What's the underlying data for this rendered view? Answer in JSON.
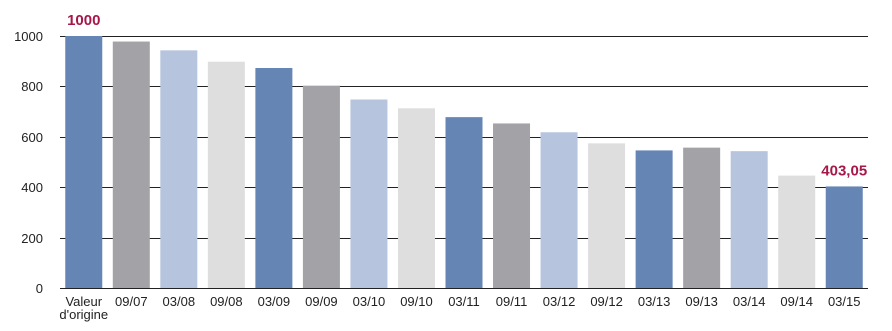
{
  "chart_data": {
    "type": "bar",
    "categories": [
      "Valeur\nd'origine",
      "09/07",
      "03/08",
      "09/08",
      "03/09",
      "09/09",
      "03/10",
      "09/10",
      "03/11",
      "09/11",
      "03/12",
      "09/12",
      "03/13",
      "09/13",
      "03/14",
      "09/14",
      "03/15"
    ],
    "values": [
      1000,
      978,
      943,
      898,
      873,
      803,
      748,
      713,
      678,
      653,
      618,
      574,
      546,
      557,
      543,
      446,
      403.05
    ],
    "data_labels": [
      {
        "category_index": 0,
        "text": "1000"
      },
      {
        "category_index": 16,
        "text": "403,05"
      }
    ],
    "ylim": [
      0,
      1000
    ],
    "yticks": [
      0,
      200,
      400,
      600,
      800,
      1000
    ],
    "grid": true,
    "title": "",
    "xlabel": "",
    "ylabel": "",
    "bar_colors": [
      "#6585b5",
      "#a2a2a7",
      "#b6c4dd",
      "#dededf"
    ],
    "label_color": "#a6174a",
    "grid_color": "#222222"
  }
}
